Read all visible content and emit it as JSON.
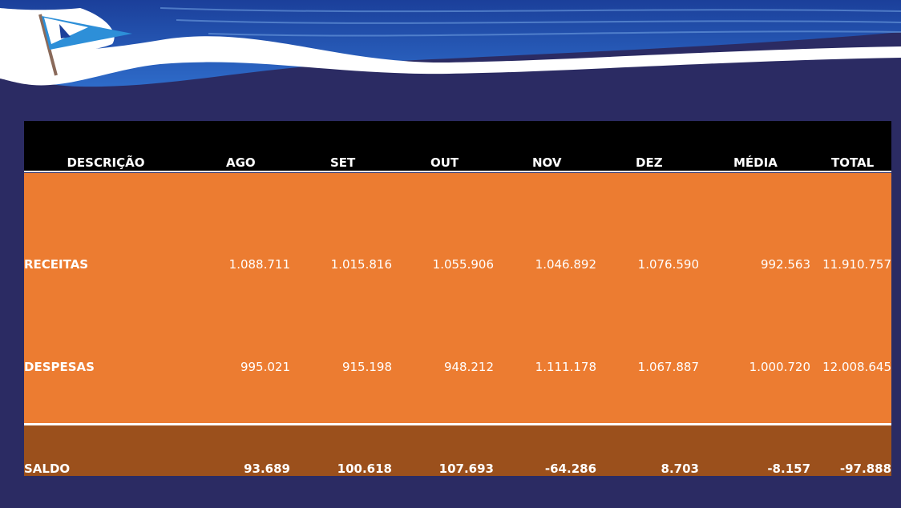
{
  "table": {
    "headers": [
      "DESCRIÇÃO",
      "AGO",
      "SET",
      "OUT",
      "NOV",
      "DEZ",
      "MÉDIA",
      "TOTAL"
    ],
    "rows": [
      [
        "RECEITAS",
        "1.088.711",
        "1.015.816",
        "1.055.906",
        "1.046.892",
        "1.076.590",
        "992.563",
        "11.910.757"
      ],
      [
        "DESPESAS",
        "995.021",
        "915.198",
        "948.212",
        "1.111.178",
        "1.067.887",
        "1.000.720",
        "12.008.645"
      ],
      [
        "SALDO",
        "93.689",
        "100.618",
        "107.693",
        "-64.286",
        "8.703",
        "-8.157",
        "-97.888"
      ]
    ]
  }
}
